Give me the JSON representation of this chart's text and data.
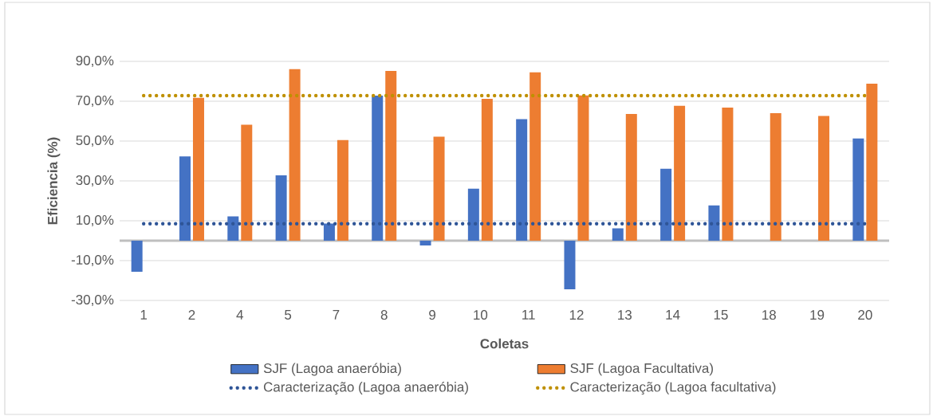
{
  "chart_data": {
    "type": "bar",
    "xlabel": "Coletas",
    "ylabel": "Eficiencia (%)",
    "categories": [
      "1",
      "2",
      "4",
      "5",
      "7",
      "8",
      "9",
      "10",
      "11",
      "12",
      "13",
      "14",
      "15",
      "18",
      "19",
      "20"
    ],
    "series": [
      {
        "name": "SJF (Lagoa anaeróbia)",
        "color": "#4472c4",
        "values": [
          -15.6,
          42.3,
          12.2,
          32.8,
          8.6,
          72.8,
          -2.4,
          26.1,
          61.0,
          -24.4,
          6.2,
          36.1,
          17.7,
          null,
          null,
          51.3
        ]
      },
      {
        "name": "SJF (Lagoa Facultativa)",
        "color": "#ed7d31",
        "values": [
          null,
          71.7,
          58.2,
          86.1,
          50.5,
          85.2,
          52.2,
          71.2,
          84.5,
          72.9,
          63.6,
          67.7,
          66.8,
          64.0,
          62.6,
          78.8
        ]
      },
      {
        "name": "Caracterização (Lagoa anaeróbia)",
        "type": "line",
        "color": "#2f5597",
        "line_style": "dotted",
        "marker": "none",
        "values": [
          8.5,
          8.5,
          8.5,
          8.5,
          8.5,
          8.5,
          8.5,
          8.5,
          8.5,
          8.5,
          8.5,
          8.5,
          8.5,
          8.5,
          8.5,
          8.5
        ]
      },
      {
        "name": "Caracterização (Lagoa facultativa)",
        "type": "line",
        "color": "#bf9000",
        "line_style": "dotted",
        "marker": "none",
        "values": [
          72.8,
          72.8,
          72.8,
          72.8,
          72.8,
          72.8,
          72.8,
          72.8,
          72.8,
          72.8,
          72.8,
          72.8,
          72.8,
          72.8,
          72.8,
          72.8
        ]
      }
    ],
    "ylim": [
      -30,
      90
    ],
    "yticks": [
      {
        "value": -30,
        "label": "-30,0%"
      },
      {
        "value": -10,
        "label": "-10,0%"
      },
      {
        "value": 10,
        "label": "10,0%"
      },
      {
        "value": 30,
        "label": "30,0%"
      },
      {
        "value": 50,
        "label": "50,0%"
      },
      {
        "value": 70,
        "label": "70,0%"
      },
      {
        "value": 90,
        "label": "90,0%"
      }
    ],
    "grid": "y",
    "legend": "bottom"
  }
}
